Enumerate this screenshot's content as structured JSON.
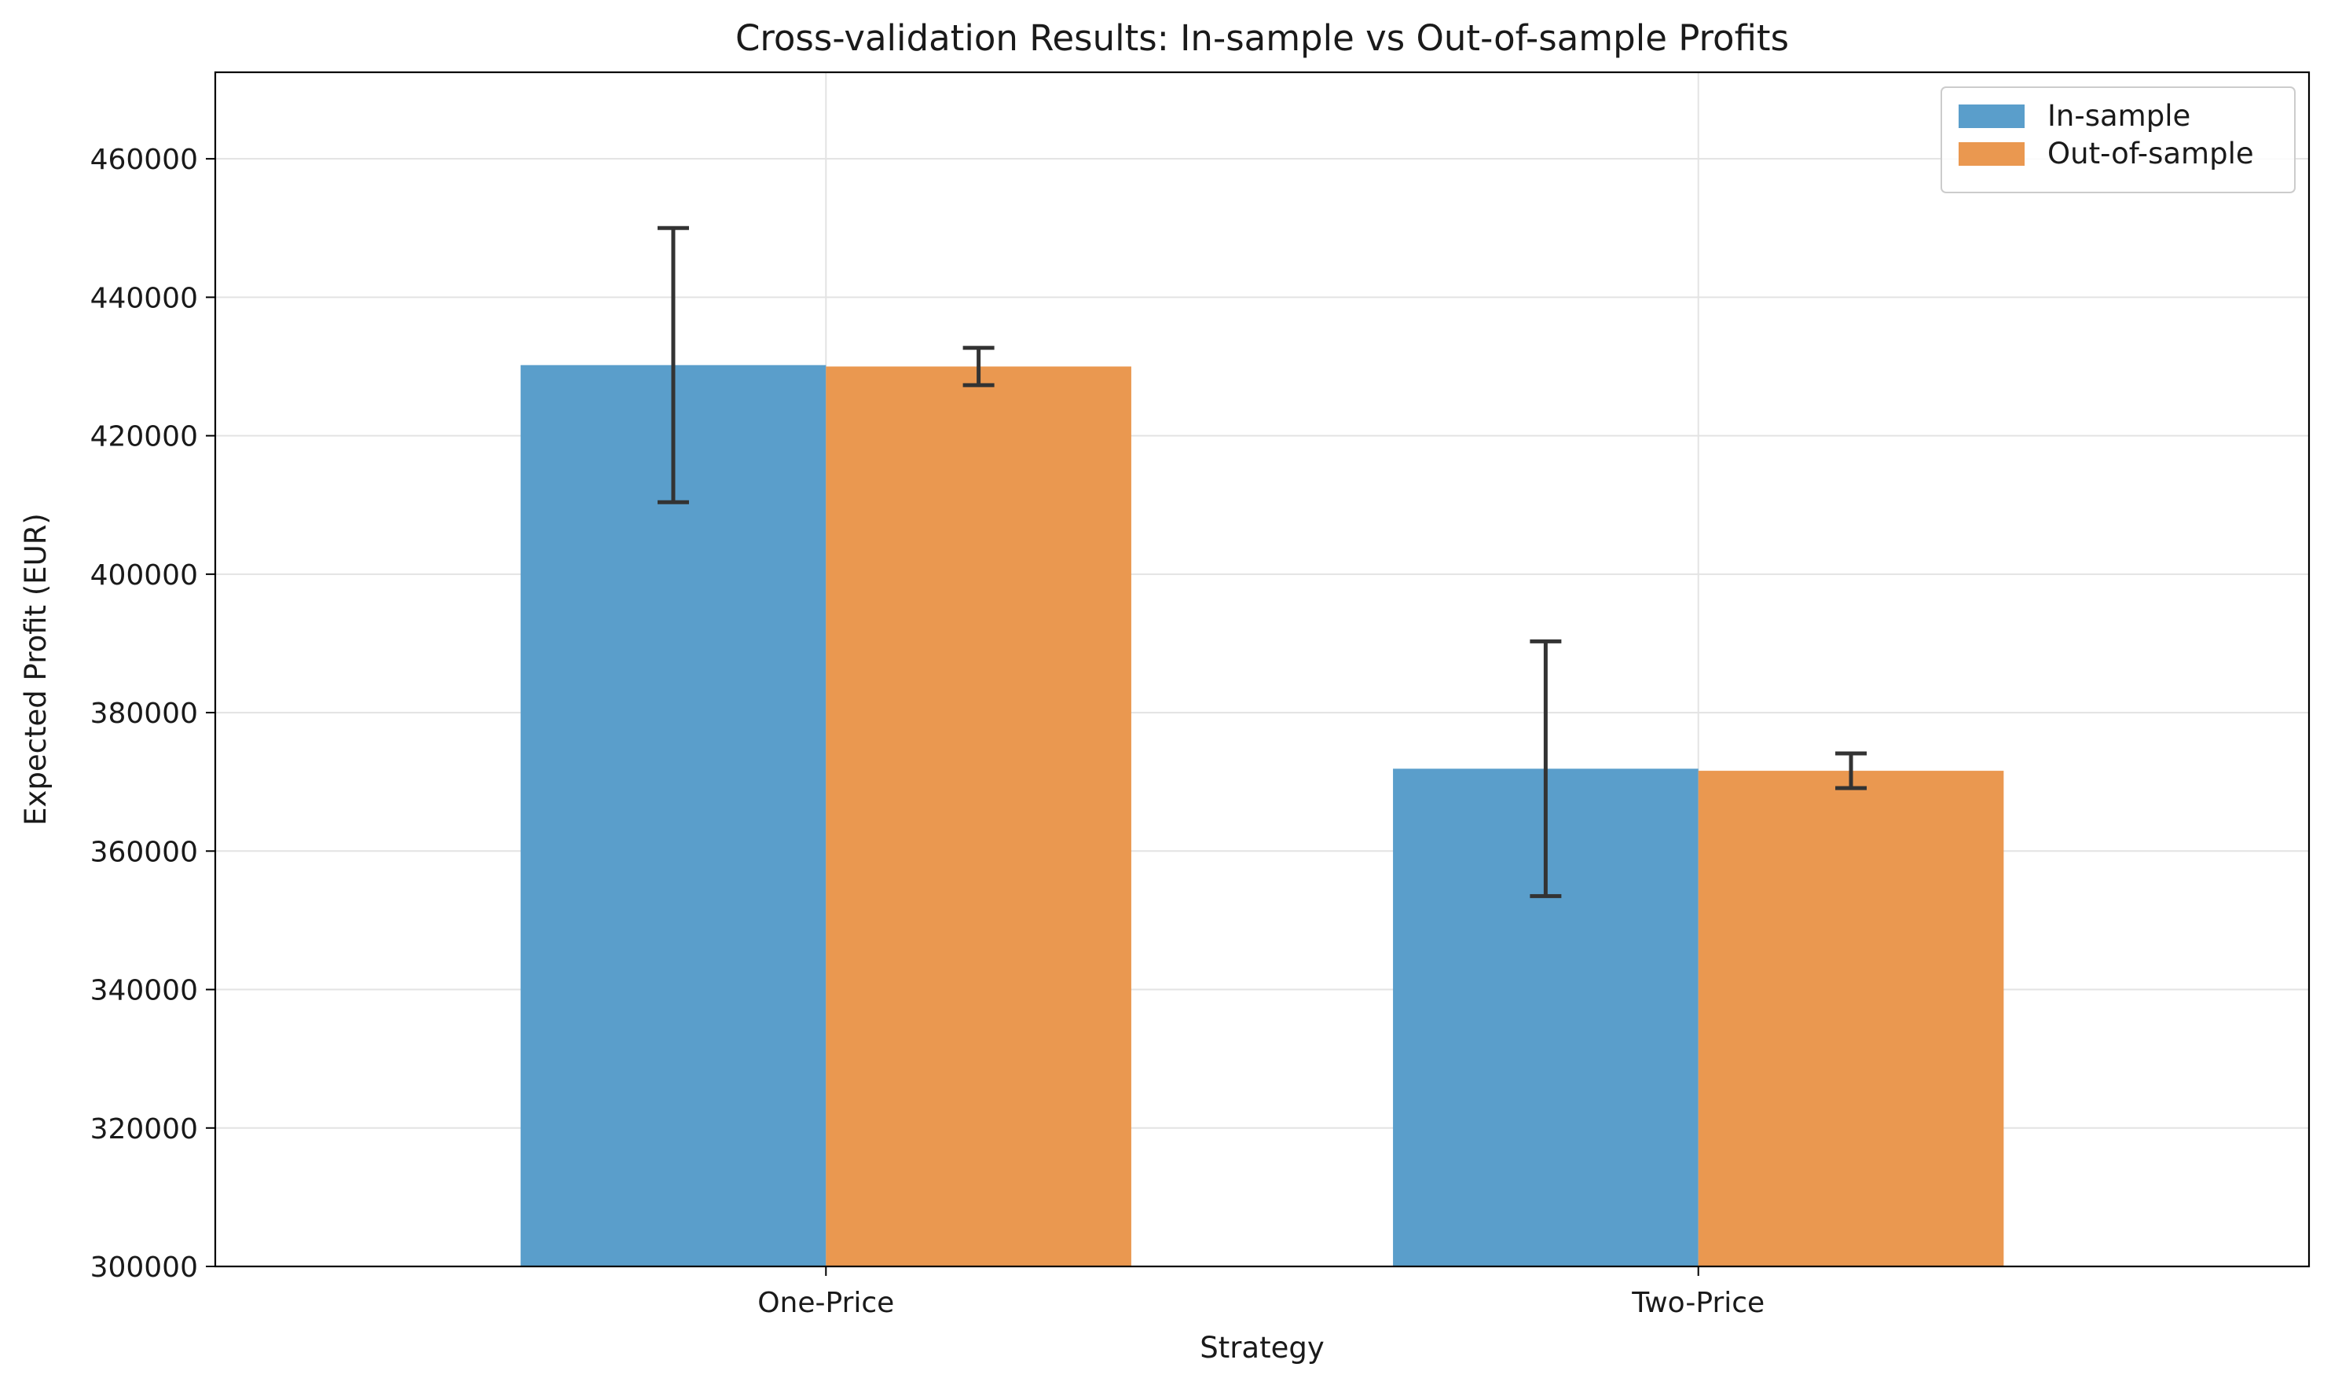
{
  "chart_data": {
    "type": "bar",
    "title": "Cross-validation Results: In-sample vs Out-of-sample Profits",
    "xlabel": "Strategy",
    "ylabel": "Expected Profit (EUR)",
    "categories": [
      "One-Price",
      "Two-Price"
    ],
    "ylim": [
      300000,
      472500
    ],
    "yticks": [
      300000,
      320000,
      340000,
      360000,
      380000,
      400000,
      420000,
      440000,
      460000
    ],
    "grid": true,
    "legend_position": "top-right",
    "series": [
      {
        "name": "In-sample",
        "color": "#5a9ecb",
        "values": [
          430200,
          371900
        ],
        "error": [
          19800,
          18400
        ]
      },
      {
        "name": "Out-of-sample",
        "color": "#ea9850",
        "values": [
          430000,
          371600
        ],
        "error": [
          2700,
          2500
        ]
      }
    ],
    "error_bar_color": "#333333"
  }
}
